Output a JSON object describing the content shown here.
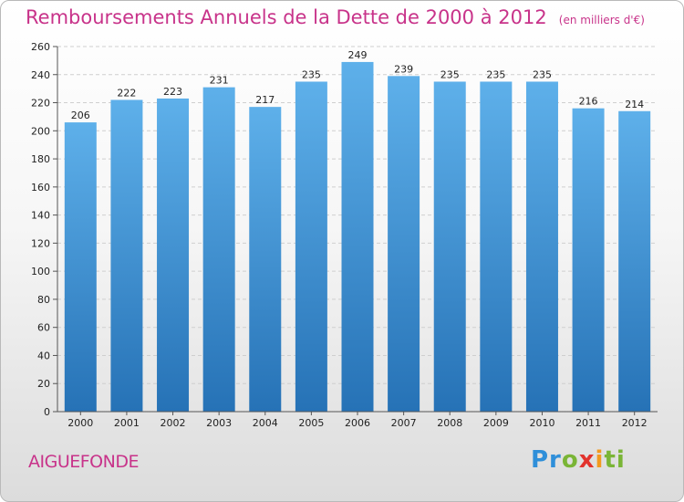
{
  "header": {
    "title": "Remboursements Annuels de la Dette de 2000 à 2012",
    "unit": "(en milliers d'€)"
  },
  "footer": {
    "place": "AIGUEFONDE",
    "logo": [
      "Pr",
      "o",
      "x",
      "i",
      "ti"
    ]
  },
  "colors": {
    "title": "#c8338a",
    "bar_top": "#5eb0ea",
    "bar_bottom": "#2672b6"
  },
  "chart_data": {
    "type": "bar",
    "title": "Remboursements Annuels de la Dette de 2000 à 2012 (en milliers d'€)",
    "xlabel": "",
    "ylabel": "",
    "categories": [
      "2000",
      "2001",
      "2002",
      "2003",
      "2004",
      "2005",
      "2006",
      "2007",
      "2008",
      "2009",
      "2010",
      "2011",
      "2012"
    ],
    "values": [
      206,
      222,
      223,
      231,
      217,
      235,
      249,
      239,
      235,
      235,
      235,
      216,
      214
    ],
    "ylim": [
      0,
      260
    ],
    "yticks": [
      0,
      20,
      40,
      60,
      80,
      100,
      120,
      140,
      160,
      180,
      200,
      220,
      240,
      260
    ],
    "grid": true
  }
}
